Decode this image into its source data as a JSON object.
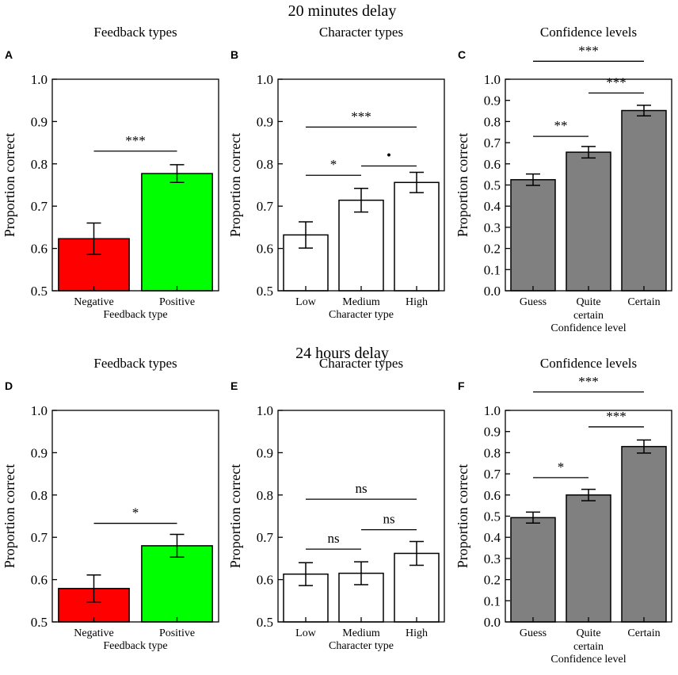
{
  "sections": [
    {
      "title": "20 minutes delay"
    },
    {
      "title": "24 hours delay"
    }
  ],
  "chart_data": [
    {
      "label": "A",
      "type": "bar",
      "title": "Feedback types",
      "xlabel": "Feedback type",
      "ylabel": "Proportion correct",
      "ylim": [
        0.5,
        1.0
      ],
      "yticks": [
        "0.5",
        "0.6",
        "0.7",
        "0.8",
        "0.9",
        "1.0"
      ],
      "categories": [
        "Negative",
        "Positive"
      ],
      "values": [
        0.623,
        0.777
      ],
      "errors": [
        0.037,
        0.021
      ],
      "bar_colors": [
        "#ff0000",
        "#00ff00"
      ],
      "significance": [
        {
          "from": 0,
          "to": 1,
          "y": 0.83,
          "text": "***"
        }
      ]
    },
    {
      "label": "B",
      "type": "bar",
      "title": "Character types",
      "xlabel": "Character type",
      "ylabel": "Proportion correct",
      "ylim": [
        0.5,
        1.0
      ],
      "yticks": [
        "0.5",
        "0.6",
        "0.7",
        "0.8",
        "0.9",
        "1.0"
      ],
      "categories": [
        "Low",
        "Medium",
        "High"
      ],
      "values": [
        0.632,
        0.714,
        0.756
      ],
      "errors": [
        0.031,
        0.028,
        0.024
      ],
      "bar_colors": [
        "#ffffff",
        "#ffffff",
        "#ffffff"
      ],
      "significance": [
        {
          "from": 0,
          "to": 1,
          "y": 0.773,
          "text": "*"
        },
        {
          "from": 1,
          "to": 2,
          "y": 0.795,
          "text": "•"
        },
        {
          "from": 0,
          "to": 2,
          "y": 0.887,
          "text": "***"
        }
      ]
    },
    {
      "label": "C",
      "type": "bar",
      "title": "Confidence levels",
      "xlabel": "Confidence level",
      "ylabel": "Proportion correct",
      "ylim": [
        0.0,
        1.0
      ],
      "yticks": [
        "0.0",
        "0.1",
        "0.2",
        "0.3",
        "0.4",
        "0.5",
        "0.6",
        "0.7",
        "0.8",
        "0.9",
        "1.0"
      ],
      "categories": [
        "Guess",
        "Quite\ncertain",
        "Certain"
      ],
      "values": [
        0.525,
        0.655,
        0.852
      ],
      "errors": [
        0.027,
        0.027,
        0.025
      ],
      "bar_colors": [
        "#808080",
        "#808080",
        "#808080"
      ],
      "significance": [
        {
          "from": 0,
          "to": 1,
          "y": 0.73,
          "text": "**"
        },
        {
          "from": 1,
          "to": 2,
          "y": 0.935,
          "text": "***"
        },
        {
          "from": 0,
          "to": 2,
          "y": 1.085,
          "text": "***"
        }
      ]
    },
    {
      "label": "D",
      "type": "bar",
      "title": "Feedback types",
      "xlabel": "Feedback type",
      "ylabel": "Proportion correct",
      "ylim": [
        0.5,
        1.0
      ],
      "yticks": [
        "0.5",
        "0.6",
        "0.7",
        "0.8",
        "0.9",
        "1.0"
      ],
      "categories": [
        "Negative",
        "Positive"
      ],
      "values": [
        0.579,
        0.68
      ],
      "errors": [
        0.032,
        0.027
      ],
      "bar_colors": [
        "#ff0000",
        "#00ff00"
      ],
      "significance": [
        {
          "from": 0,
          "to": 1,
          "y": 0.733,
          "text": "*"
        }
      ]
    },
    {
      "label": "E",
      "type": "bar",
      "title": "Character types",
      "xlabel": "Character type",
      "ylabel": "Proportion correct",
      "ylim": [
        0.5,
        1.0
      ],
      "yticks": [
        "0.5",
        "0.6",
        "0.7",
        "0.8",
        "0.9",
        "1.0"
      ],
      "categories": [
        "Low",
        "Medium",
        "High"
      ],
      "values": [
        0.613,
        0.615,
        0.662
      ],
      "errors": [
        0.027,
        0.027,
        0.028
      ],
      "bar_colors": [
        "#ffffff",
        "#ffffff",
        "#ffffff"
      ],
      "significance": [
        {
          "from": 0,
          "to": 1,
          "y": 0.672,
          "text": "ns"
        },
        {
          "from": 1,
          "to": 2,
          "y": 0.718,
          "text": "ns"
        },
        {
          "from": 0,
          "to": 2,
          "y": 0.79,
          "text": "ns"
        }
      ]
    },
    {
      "label": "F",
      "type": "bar",
      "title": "Confidence levels",
      "xlabel": "Confidence level",
      "ylabel": "Proportion correct",
      "ylim": [
        0.0,
        1.0
      ],
      "yticks": [
        "0.0",
        "0.1",
        "0.2",
        "0.3",
        "0.4",
        "0.5",
        "0.6",
        "0.7",
        "0.8",
        "0.9",
        "1.0"
      ],
      "categories": [
        "Guess",
        "Quite\ncertain",
        "Certain"
      ],
      "values": [
        0.493,
        0.6,
        0.829
      ],
      "errors": [
        0.026,
        0.027,
        0.031
      ],
      "bar_colors": [
        "#808080",
        "#808080",
        "#808080"
      ],
      "significance": [
        {
          "from": 0,
          "to": 1,
          "y": 0.682,
          "text": "*"
        },
        {
          "from": 1,
          "to": 2,
          "y": 0.922,
          "text": "***"
        },
        {
          "from": 0,
          "to": 2,
          "y": 1.087,
          "text": "***"
        }
      ]
    }
  ]
}
